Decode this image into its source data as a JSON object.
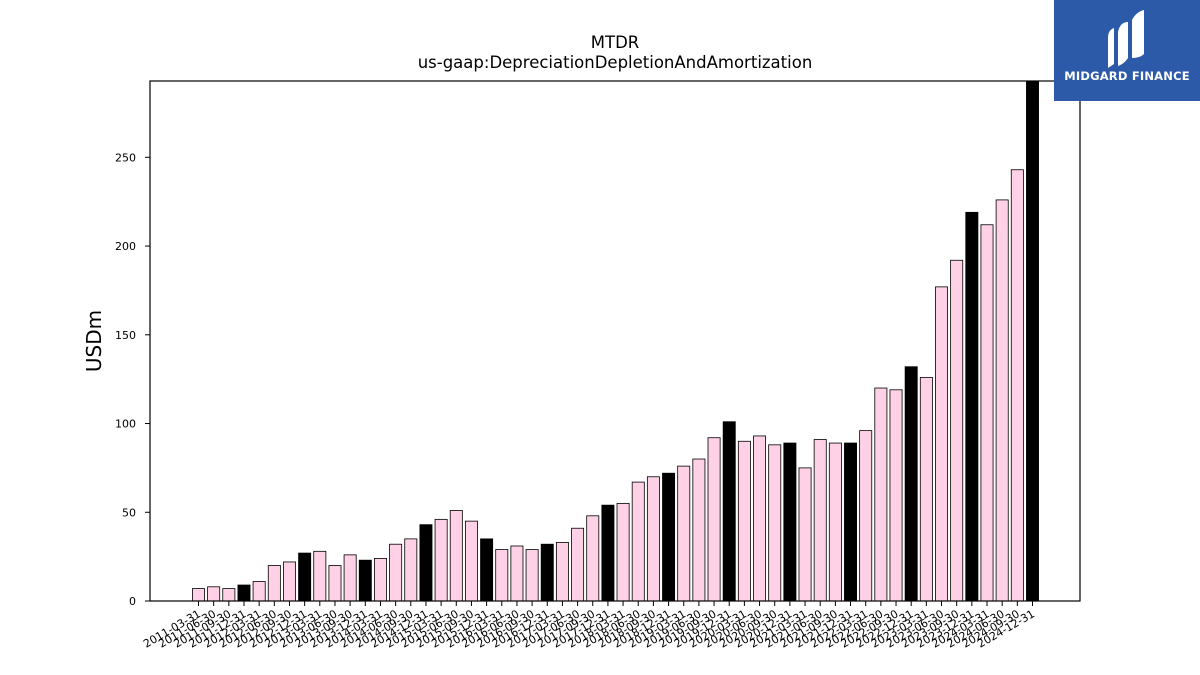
{
  "chart_data": {
    "type": "bar",
    "title": "MTDR",
    "subtitle": "us-gaap:DepreciationDepletionAndAmortization",
    "xlabel": "",
    "ylabel": "USDm",
    "ylim": [
      0,
      293
    ],
    "yticks": [
      0,
      50,
      100,
      150,
      200,
      250
    ],
    "grid": false,
    "categories": [
      "2011-03-31",
      "2011-06-30",
      "2011-09-30",
      "2011-12-31",
      "2012-03-31",
      "2012-06-30",
      "2012-09-30",
      "2012-12-31",
      "2013-03-31",
      "2013-06-30",
      "2013-09-30",
      "2013-12-31",
      "2014-03-31",
      "2014-06-30",
      "2014-09-30",
      "2014-12-31",
      "2015-03-31",
      "2015-06-30",
      "2015-09-30",
      "2015-12-31",
      "2016-03-31",
      "2016-06-30",
      "2016-09-30",
      "2016-12-31",
      "2017-03-31",
      "2017-06-30",
      "2017-09-30",
      "2017-12-31",
      "2018-03-31",
      "2018-06-30",
      "2018-09-30",
      "2018-12-31",
      "2019-03-31",
      "2019-06-30",
      "2019-09-30",
      "2019-12-31",
      "2020-03-31",
      "2020-06-30",
      "2020-09-30",
      "2020-12-31",
      "2021-03-31",
      "2021-06-30",
      "2021-09-30",
      "2021-12-31",
      "2022-03-31",
      "2022-06-30",
      "2022-09-30",
      "2022-12-31",
      "2023-03-31",
      "2023-06-30",
      "2023-09-30",
      "2023-12-31",
      "2024-03-31",
      "2024-06-30",
      "2024-09-30",
      "2024-12-31"
    ],
    "values": [
      7,
      8,
      7,
      9,
      11,
      20,
      22,
      27,
      28,
      20,
      26,
      23,
      24,
      32,
      35,
      43,
      46,
      51,
      45,
      35,
      29,
      31,
      29,
      32,
      33,
      41,
      48,
      54,
      55,
      67,
      70,
      72,
      76,
      80,
      92,
      101,
      90,
      93,
      88,
      89,
      75,
      91,
      89,
      89,
      96,
      120,
      119,
      132,
      126,
      177,
      192,
      219,
      212,
      226,
      243,
      293
    ],
    "highlight": [
      false,
      false,
      false,
      true,
      false,
      false,
      false,
      true,
      false,
      false,
      false,
      true,
      false,
      false,
      false,
      true,
      false,
      false,
      false,
      true,
      false,
      false,
      false,
      true,
      false,
      false,
      false,
      true,
      false,
      false,
      false,
      true,
      false,
      false,
      false,
      true,
      false,
      false,
      false,
      true,
      false,
      false,
      false,
      true,
      false,
      false,
      false,
      true,
      false,
      false,
      false,
      true,
      false,
      false,
      false,
      true
    ],
    "colors": {
      "bar": "#ffd1e6",
      "highlight": "#000000",
      "edge": "#000000"
    }
  },
  "logo": {
    "text": "MIDGARD FINANCE",
    "background": "#2c5aa8"
  }
}
